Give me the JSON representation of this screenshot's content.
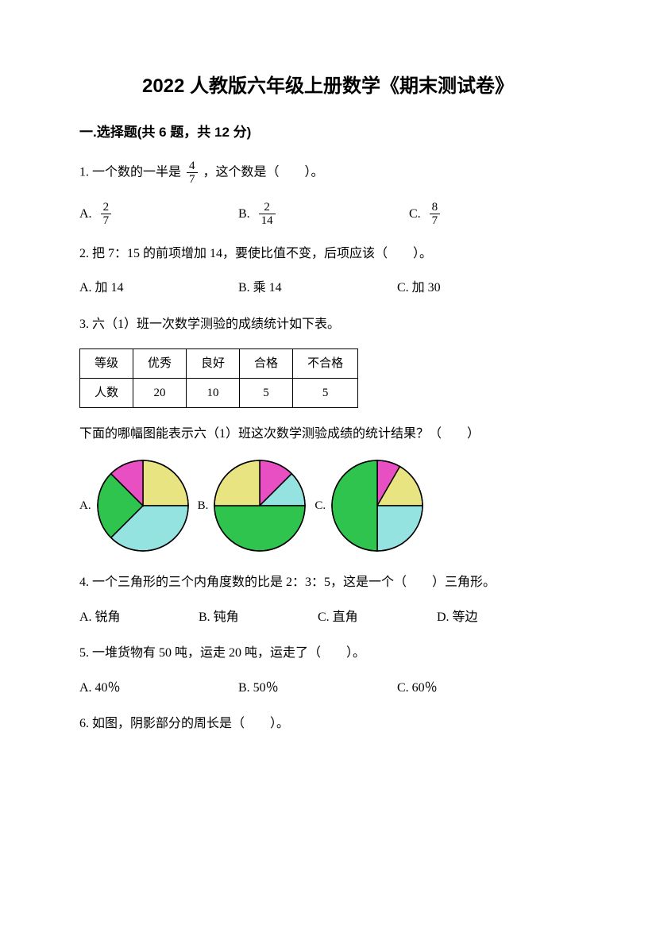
{
  "title": "2022 人教版六年级上册数学《期末测试卷》",
  "section1": "一.选择题(共 6 题，共 12 分)",
  "q1": {
    "pre": "1. 一个数的一半是",
    "frac": {
      "num": "4",
      "den": "7"
    },
    "post": "，这个数是（　　）。",
    "optA": "A.",
    "fracA": {
      "num": "2",
      "den": "7"
    },
    "optB": "B.",
    "fracB": {
      "num": "2",
      "den": "14"
    },
    "optC": "C.",
    "fracC": {
      "num": "8",
      "den": "7"
    }
  },
  "q2": {
    "text": "2. 把 7：15 的前项增加 14，要使比值不变，后项应该（　　）。",
    "optA": "A. 加 14",
    "optB": "B. 乘 14",
    "optC": "C. 加 30"
  },
  "q3": {
    "text": "3. 六（1）班一次数学测验的成绩统计如下表。",
    "table": {
      "headers": [
        "等级",
        "优秀",
        "良好",
        "合格",
        "不合格"
      ],
      "row": [
        "人数",
        "20",
        "10",
        "5",
        "5"
      ]
    },
    "subtext": "下面的哪幅图能表示六（1）班这次数学测验成绩的统计结果？（　　）",
    "labelA": "A.",
    "labelB": "B.",
    "labelC": "C.",
    "pies": {
      "radius": 57,
      "stroke": "#000000",
      "colors": {
        "khaki": "#e8e482",
        "cyan": "#94e3e0",
        "green": "#2fc44e",
        "magenta": "#e74fc2"
      },
      "A": [
        {
          "color": "khaki",
          "start": -90,
          "end": 0
        },
        {
          "color": "cyan",
          "start": 0,
          "end": 135
        },
        {
          "color": "green",
          "start": 135,
          "end": 225
        },
        {
          "color": "magenta",
          "start": 225,
          "end": 270
        }
      ],
      "B": [
        {
          "color": "magenta",
          "start": -90,
          "end": -45
        },
        {
          "color": "cyan",
          "start": -45,
          "end": 0
        },
        {
          "color": "green",
          "start": 0,
          "end": 180
        },
        {
          "color": "khaki",
          "start": 180,
          "end": 270
        }
      ],
      "C": [
        {
          "color": "magenta",
          "start": -90,
          "end": -60
        },
        {
          "color": "khaki",
          "start": -60,
          "end": 0
        },
        {
          "color": "cyan",
          "start": 0,
          "end": 90
        },
        {
          "color": "green",
          "start": 90,
          "end": 270
        }
      ]
    }
  },
  "q4": {
    "text": "4. 一个三角形的三个内角度数的比是 2：3：5，这是一个（　　）三角形。",
    "optA": "A. 锐角",
    "optB": "B. 钝角",
    "optC": "C. 直角",
    "optD": "D. 等边"
  },
  "q5": {
    "text": "5. 一堆货物有 50 吨，运走 20 吨，运走了（　　）。",
    "optA": "A. 40％",
    "optB": "B. 50％",
    "optC": "C. 60％"
  },
  "q6": {
    "text": "6. 如图，阴影部分的周长是（　　）。"
  }
}
